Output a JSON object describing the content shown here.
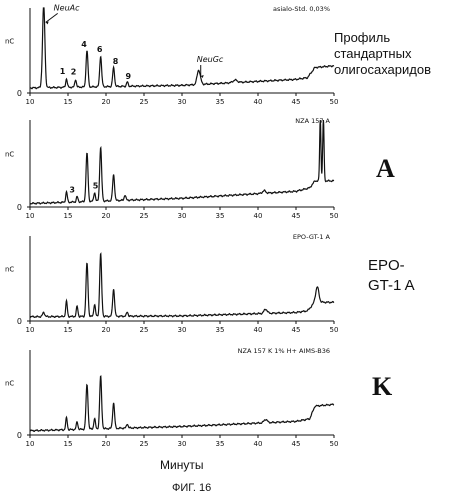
{
  "figure_caption": "ФИГ. 16",
  "side_labels": {
    "profile_title": "Профиль стандартных олигосахаридов",
    "label_a": "A",
    "label_epo_line1": "EPO-",
    "label_epo_line2": "GT-1 A",
    "label_k": "K"
  },
  "colors": {
    "trace": "#111111",
    "axis": "#111111",
    "background": "#ffffff"
  },
  "chart_data": [
    {
      "type": "line",
      "title": "asialo-Std. 0,03%",
      "ylabel": "nC",
      "xlabel": "",
      "xlim": [
        10,
        50
      ],
      "x_ticks": [
        10,
        15,
        20,
        25,
        30,
        35,
        40,
        45,
        50
      ],
      "y_ticks": [
        0
      ],
      "grid": false,
      "baseline": [
        [
          10,
          0.06
        ],
        [
          30,
          0.09
        ],
        [
          45,
          0.16
        ],
        [
          46.5,
          0.18
        ],
        [
          47.5,
          0.3
        ],
        [
          50,
          0.32
        ]
      ],
      "peaks": [
        {
          "x": 11.8,
          "h": 0.98,
          "w": 0.22,
          "label": "NeuAc"
        },
        {
          "x": 14.8,
          "h": 0.1,
          "w": 0.15,
          "label": "1"
        },
        {
          "x": 16.0,
          "h": 0.09,
          "w": 0.15,
          "label": "2"
        },
        {
          "x": 17.5,
          "h": 0.42,
          "w": 0.18,
          "label": "4"
        },
        {
          "x": 19.3,
          "h": 0.36,
          "w": 0.18,
          "label": "6"
        },
        {
          "x": 21.0,
          "h": 0.22,
          "w": 0.18,
          "label": "8"
        },
        {
          "x": 22.8,
          "h": 0.05,
          "w": 0.15,
          "label": "9"
        },
        {
          "x": 32.2,
          "h": 0.17,
          "w": 0.3,
          "label": "NeuGc"
        },
        {
          "x": 37.0,
          "h": 0.03,
          "w": 0.4,
          "label": ""
        }
      ]
    },
    {
      "type": "line",
      "title": "NZA 157 A",
      "ylabel": "nC",
      "xlabel": "",
      "xlim": [
        10,
        50
      ],
      "x_ticks": [
        10,
        15,
        20,
        25,
        30,
        35,
        40,
        45,
        50
      ],
      "y_ticks": [
        0
      ],
      "grid": false,
      "baseline": [
        [
          10,
          0.04
        ],
        [
          30,
          0.1
        ],
        [
          45,
          0.18
        ],
        [
          46.8,
          0.22
        ],
        [
          47.5,
          0.3
        ],
        [
          50,
          0.3
        ]
      ],
      "peaks": [
        {
          "x": 14.8,
          "h": 0.12,
          "w": 0.15,
          "label": ""
        },
        {
          "x": 16.2,
          "h": 0.06,
          "w": 0.15,
          "label": "3"
        },
        {
          "x": 17.5,
          "h": 0.55,
          "w": 0.18,
          "label": ""
        },
        {
          "x": 18.5,
          "h": 0.1,
          "w": 0.15,
          "label": "5"
        },
        {
          "x": 19.3,
          "h": 0.62,
          "w": 0.18,
          "label": ""
        },
        {
          "x": 21.0,
          "h": 0.3,
          "w": 0.18,
          "label": ""
        },
        {
          "x": 22.5,
          "h": 0.06,
          "w": 0.15,
          "label": ""
        },
        {
          "x": 40.8,
          "h": 0.03,
          "w": 0.3,
          "label": ""
        },
        {
          "x": 48.2,
          "h": 0.72,
          "w": 0.12,
          "label": ""
        },
        {
          "x": 48.6,
          "h": 0.72,
          "w": 0.12,
          "label": ""
        }
      ]
    },
    {
      "type": "line",
      "title": "EPO-GT-1 A",
      "ylabel": "nC",
      "xlabel": "",
      "xlim": [
        10,
        50
      ],
      "x_ticks": [
        10,
        15,
        20,
        25,
        30,
        35,
        40,
        45,
        50
      ],
      "y_ticks": [
        0
      ],
      "grid": false,
      "baseline": [
        [
          10,
          0.05
        ],
        [
          30,
          0.06
        ],
        [
          45,
          0.1
        ],
        [
          46.5,
          0.12
        ],
        [
          47.5,
          0.22
        ],
        [
          50,
          0.22
        ]
      ],
      "peaks": [
        {
          "x": 11.8,
          "h": 0.05,
          "w": 0.2,
          "label": ""
        },
        {
          "x": 14.8,
          "h": 0.18,
          "w": 0.15,
          "label": ""
        },
        {
          "x": 16.2,
          "h": 0.12,
          "w": 0.15,
          "label": ""
        },
        {
          "x": 17.5,
          "h": 0.62,
          "w": 0.18,
          "label": ""
        },
        {
          "x": 18.5,
          "h": 0.14,
          "w": 0.15,
          "label": ""
        },
        {
          "x": 19.3,
          "h": 0.74,
          "w": 0.18,
          "label": ""
        },
        {
          "x": 21.0,
          "h": 0.32,
          "w": 0.18,
          "label": ""
        },
        {
          "x": 22.8,
          "h": 0.05,
          "w": 0.15,
          "label": ""
        },
        {
          "x": 41.0,
          "h": 0.05,
          "w": 0.3,
          "label": ""
        },
        {
          "x": 47.8,
          "h": 0.18,
          "w": 0.3,
          "label": ""
        }
      ]
    },
    {
      "type": "line",
      "title": "NZA 157 K 1% H+ AIMS-B36",
      "ylabel": "nC",
      "xlabel": "Минуты",
      "xlim": [
        10,
        50
      ],
      "x_ticks": [
        10,
        15,
        20,
        25,
        30,
        35,
        40,
        45,
        50
      ],
      "y_ticks": [
        0
      ],
      "grid": false,
      "baseline": [
        [
          10,
          0.05
        ],
        [
          30,
          0.1
        ],
        [
          45,
          0.16
        ],
        [
          46.8,
          0.19
        ],
        [
          47.5,
          0.34
        ],
        [
          50,
          0.36
        ]
      ],
      "peaks": [
        {
          "x": 14.8,
          "h": 0.14,
          "w": 0.15,
          "label": ""
        },
        {
          "x": 16.2,
          "h": 0.09,
          "w": 0.15,
          "label": ""
        },
        {
          "x": 17.5,
          "h": 0.52,
          "w": 0.18,
          "label": ""
        },
        {
          "x": 18.5,
          "h": 0.12,
          "w": 0.15,
          "label": ""
        },
        {
          "x": 19.3,
          "h": 0.62,
          "w": 0.18,
          "label": ""
        },
        {
          "x": 21.0,
          "h": 0.3,
          "w": 0.18,
          "label": ""
        },
        {
          "x": 22.8,
          "h": 0.05,
          "w": 0.15,
          "label": ""
        },
        {
          "x": 41.0,
          "h": 0.04,
          "w": 0.3,
          "label": ""
        }
      ]
    }
  ]
}
